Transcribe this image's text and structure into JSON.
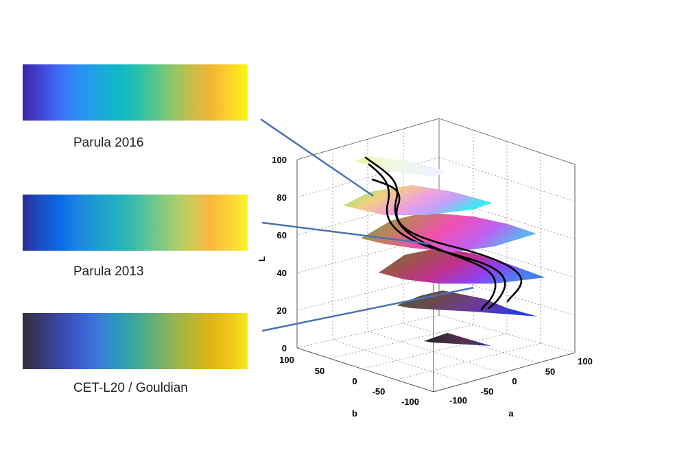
{
  "colormaps": [
    {
      "name": "Parula 2016",
      "stops": [
        "#3e26a8",
        "#4146d4",
        "#3d6ef8",
        "#2c8ef5",
        "#1ca6e0",
        "#0fb6c8",
        "#22c0b0",
        "#52c68e",
        "#8ec768",
        "#c6bd47",
        "#f2b534",
        "#fbd228",
        "#f9f70f"
      ]
    },
    {
      "name": "Parula 2013",
      "stops": [
        "#2a2e91",
        "#1b4fc4",
        "#0a6ae6",
        "#1c86e0",
        "#1e9dd0",
        "#20b0c0",
        "#3cbca8",
        "#6cc78c",
        "#9fcc72",
        "#cfc95a",
        "#f8b83c",
        "#fbd13a",
        "#f8f527"
      ]
    },
    {
      "name": "CET-L20 / Gouldian",
      "stops": [
        "#30303a",
        "#353a72",
        "#3b48a8",
        "#3c5cd0",
        "#3c7ad8",
        "#2c97c0",
        "#3aa89a",
        "#66b078",
        "#92b452",
        "#b7b632",
        "#dcb616",
        "#f0c418",
        "#f4ec1a"
      ]
    }
  ],
  "plot": {
    "axes": {
      "L": {
        "label": "L",
        "ticks": [
          "0",
          "20",
          "40",
          "60",
          "80",
          "100"
        ]
      },
      "a": {
        "label": "a",
        "ticks": [
          "-100",
          "-50",
          "0",
          "50",
          "100"
        ]
      },
      "b": {
        "label": "b",
        "ticks": [
          "-100",
          "-50",
          "0",
          "50",
          "100"
        ]
      }
    },
    "slice_levels": [
      5,
      25,
      45,
      65,
      85,
      100
    ],
    "curve_color": "#000000",
    "connector_color": "#4a72b8"
  }
}
